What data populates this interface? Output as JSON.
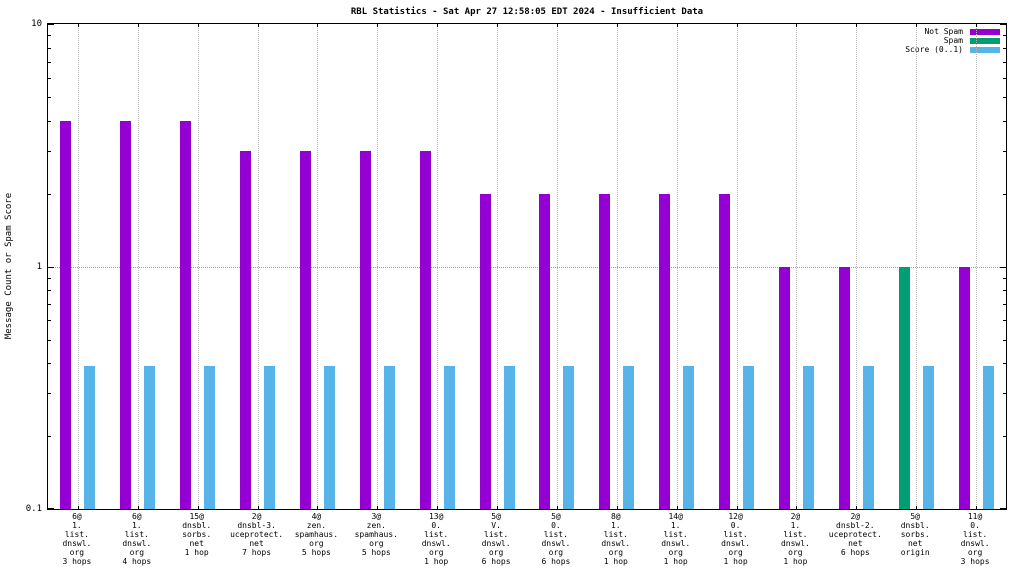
{
  "title": "RBL Statistics - Sat Apr 27 12:58:05 EDT 2024 - Insufficient Data",
  "ylabel": "Message Count or Spam Score",
  "legend": [
    {
      "label": "Not Spam",
      "color": "#9400d3"
    },
    {
      "label": "Spam",
      "color": "#009e73"
    },
    {
      "label": "Score (0..1)",
      "color": "#56b4e9"
    }
  ],
  "axis": {
    "scale": "log",
    "ymin": 0.1,
    "ymax": 10,
    "major_ticks": [
      {
        "label": "10",
        "value": 10
      },
      {
        "label": "1",
        "value": 1
      },
      {
        "label": "0.1",
        "value": 0.1
      }
    ]
  },
  "chart_data": {
    "type": "bar",
    "title": "RBL Statistics - Sat Apr 27 12:58:05 EDT 2024 - Insufficient Data",
    "xlabel": "",
    "ylabel": "Message Count or Spam Score",
    "yscale": "log",
    "ylim": [
      0.1,
      10
    ],
    "grid": true,
    "legend_position": "top-right",
    "categories": [
      [
        "6@",
        "1.",
        "list.",
        "dnswl.",
        "org",
        "3 hops"
      ],
      [
        "6@",
        "1.",
        "list.",
        "dnswl.",
        "org",
        "4 hops"
      ],
      [
        "15@",
        "dnsbl.",
        "sorbs.",
        "net",
        "1 hop"
      ],
      [
        "2@",
        "dnsbl-3.",
        "uceprotect.",
        "net",
        "7 hops"
      ],
      [
        "4@",
        "zen.",
        "spamhaus.",
        "org",
        "5 hops"
      ],
      [
        "3@",
        "zen.",
        "spamhaus.",
        "org",
        "5 hops"
      ],
      [
        "13@",
        "0.",
        "list.",
        "dnswl.",
        "org",
        "1 hop"
      ],
      [
        "5@",
        "V.",
        "list.",
        "dnswl.",
        "org",
        "6 hops"
      ],
      [
        "5@",
        "0.",
        "list.",
        "dnswl.",
        "org",
        "6 hops"
      ],
      [
        "8@",
        "1.",
        "list.",
        "dnswl.",
        "org",
        "1 hop"
      ],
      [
        "14@",
        "1.",
        "list.",
        "dnswl.",
        "org",
        "1 hop"
      ],
      [
        "12@",
        "0.",
        "list.",
        "dnswl.",
        "org",
        "1 hop"
      ],
      [
        "2@",
        "1.",
        "list.",
        "dnswl.",
        "org",
        "1 hop"
      ],
      [
        "2@",
        "dnsbl-2.",
        "uceprotect.",
        "net",
        "6 hops"
      ],
      [
        "5@",
        "dnsbl.",
        "sorbs.",
        "net",
        "origin"
      ],
      [
        "11@",
        "0.",
        "list.",
        "dnswl.",
        "org",
        "3 hops"
      ]
    ],
    "series": [
      {
        "name": "Not Spam",
        "color": "#9400d3",
        "values": [
          4,
          4,
          4,
          3,
          3,
          3,
          3,
          2,
          2,
          2,
          2,
          2,
          1,
          1,
          null,
          1
        ]
      },
      {
        "name": "Spam",
        "color": "#009e73",
        "values": [
          null,
          null,
          null,
          null,
          null,
          null,
          null,
          null,
          null,
          null,
          null,
          null,
          null,
          null,
          1,
          null
        ]
      },
      {
        "name": "Score (0..1)",
        "color": "#56b4e9",
        "values": [
          0.39,
          0.39,
          0.39,
          0.39,
          0.39,
          0.39,
          0.39,
          0.39,
          0.39,
          0.39,
          0.39,
          0.39,
          0.39,
          0.39,
          0.39,
          0.39
        ]
      }
    ]
  }
}
